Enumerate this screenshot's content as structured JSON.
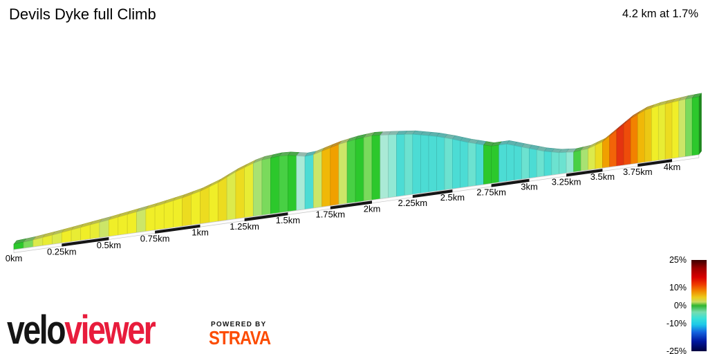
{
  "background": "#ffffff",
  "header": {
    "title": "Devils Dyke full Climb",
    "stat": "4.2 km at 1.7%"
  },
  "chart_data": {
    "type": "area",
    "title": "Devils Dyke full Climb",
    "summary": "4.2 km at 1.7%",
    "total_distance_km": 4.2,
    "average_gradient_pct": 1.7,
    "x_unit": "km",
    "x_tick_labels": [
      "0km",
      "0.25km",
      "0.5km",
      "0.75km",
      "1km",
      "1.25km",
      "1.5km",
      "1.75km",
      "2km",
      "2.25km",
      "2.5km",
      "2.75km",
      "3km",
      "3.25km",
      "3.5km",
      "3.75km",
      "4km"
    ],
    "x_ticks_km": [
      0,
      0.25,
      0.5,
      0.75,
      1,
      1.25,
      1.5,
      1.75,
      2,
      2.25,
      2.5,
      2.75,
      3,
      3.25,
      3.5,
      3.75,
      4
    ],
    "gradient_bin_km": 0.05,
    "gradient_pct": [
      0.3,
      0.9,
      1.8,
      2.4,
      2.1,
      2.7,
      2.3,
      2.9,
      2.5,
      1.5,
      2.8,
      3.1,
      2.6,
      1.7,
      3.0,
      2.7,
      3.2,
      2.8,
      3.3,
      2.9,
      3.4,
      3.0,
      3.5,
      1.8,
      3.3,
      2.2,
      1.1,
      0.6,
      0.2,
      0.4,
      0.1,
      -0.5,
      -1.6,
      1.6,
      4.9,
      5.3,
      1.4,
      0.5,
      0.2,
      0.7,
      0.1,
      -0.4,
      -0.9,
      -1.7,
      -1.3,
      -1.9,
      -1.5,
      -2.0,
      -1.6,
      -1.2,
      -1.8,
      -1.5,
      -1.4,
      -1.6,
      0.2,
      0.1,
      -1.7,
      -1.9,
      -1.6,
      -1.1,
      -1.5,
      -1.2,
      -1.8,
      -1.4,
      -1.0,
      -0.6,
      0.5,
      1.1,
      2.1,
      3.6,
      5.6,
      7.6,
      9.2,
      8.4,
      6.2,
      4.7,
      3.9,
      3.1,
      2.3,
      3.3,
      2.6,
      1.6,
      0.9,
      0.3
    ],
    "profile_rel": [
      [
        0,
        8
      ],
      [
        0.1,
        10
      ],
      [
        0.25,
        15
      ],
      [
        0.5,
        24
      ],
      [
        0.75,
        34
      ],
      [
        0.9,
        41
      ],
      [
        1.0,
        47
      ],
      [
        1.1,
        56
      ],
      [
        1.2,
        68
      ],
      [
        1.3,
        77
      ],
      [
        1.35,
        80
      ],
      [
        1.45,
        82
      ],
      [
        1.52,
        81
      ],
      [
        1.58,
        77
      ],
      [
        1.63,
        76
      ],
      [
        1.72,
        82
      ],
      [
        1.8,
        87
      ],
      [
        1.9,
        91
      ],
      [
        2.0,
        93
      ],
      [
        2.1,
        91
      ],
      [
        2.25,
        87
      ],
      [
        2.4,
        79
      ],
      [
        2.5,
        72
      ],
      [
        2.6,
        64
      ],
      [
        2.75,
        54
      ],
      [
        2.85,
        54
      ],
      [
        3.0,
        43
      ],
      [
        3.1,
        36
      ],
      [
        3.2,
        31
      ],
      [
        3.3,
        29
      ],
      [
        3.4,
        31
      ],
      [
        3.5,
        38
      ],
      [
        3.6,
        52
      ],
      [
        3.7,
        66
      ],
      [
        3.8,
        75
      ],
      [
        3.9,
        79
      ],
      [
        4.0,
        81
      ],
      [
        4.1,
        83
      ],
      [
        4.2,
        84
      ]
    ],
    "gradient_color_scale": [
      [
        -2.2,
        "#38cce4"
      ],
      [
        -1.5,
        "#4cdcd4"
      ],
      [
        -1.0,
        "#6ce2d0"
      ],
      [
        -0.6,
        "#92e8d4"
      ],
      [
        -0.25,
        "#aaead6"
      ],
      [
        0.3,
        "#2cc82c"
      ],
      [
        0.55,
        "#48d044"
      ],
      [
        0.9,
        "#7ada5c"
      ],
      [
        1.3,
        "#a8e272"
      ],
      [
        1.75,
        "#cce668"
      ],
      [
        2.1,
        "#dcea4c"
      ],
      [
        2.5,
        "#e8ec34"
      ],
      [
        3.2,
        "#f0ee28"
      ],
      [
        3.8,
        "#ecdc20"
      ],
      [
        4.4,
        "#ecc814"
      ],
      [
        5.0,
        "#f0b808"
      ],
      [
        5.9,
        "#f0a000"
      ],
      [
        7.0,
        "#f28200"
      ],
      [
        8.0,
        "#f26408"
      ],
      [
        9.0,
        "#ee4c0a"
      ],
      [
        99,
        "#e43410"
      ]
    ],
    "ruler_interval_km": 0.25,
    "legend": {
      "min_pct": -25,
      "max_pct": 25,
      "labels": [
        "25%",
        "10%",
        "0%",
        "-10%",
        "-25%"
      ],
      "values": [
        25,
        10,
        0,
        -10,
        -25
      ],
      "stops": [
        [
          "#3c0000",
          0
        ],
        [
          "#9c0000",
          9
        ],
        [
          "#d80000",
          19
        ],
        [
          "#ee3c00",
          27
        ],
        [
          "#f08800",
          34
        ],
        [
          "#eccc1c",
          41
        ],
        [
          "#c8dc60",
          46
        ],
        [
          "#30b430",
          50
        ],
        [
          "#76dcae",
          57
        ],
        [
          "#38e0d8",
          64
        ],
        [
          "#1cc8e8",
          71
        ],
        [
          "#1464e0",
          79
        ],
        [
          "#0018a0",
          89
        ],
        [
          "#000040",
          100
        ]
      ]
    }
  },
  "footer": {
    "brand_velo": "velo",
    "brand_viewer": "viewer",
    "brand_viewer_color": "#e81c3c",
    "powered_by": "POWERED BY",
    "strava": "STRAVA",
    "strava_color": "#fc4c02"
  }
}
